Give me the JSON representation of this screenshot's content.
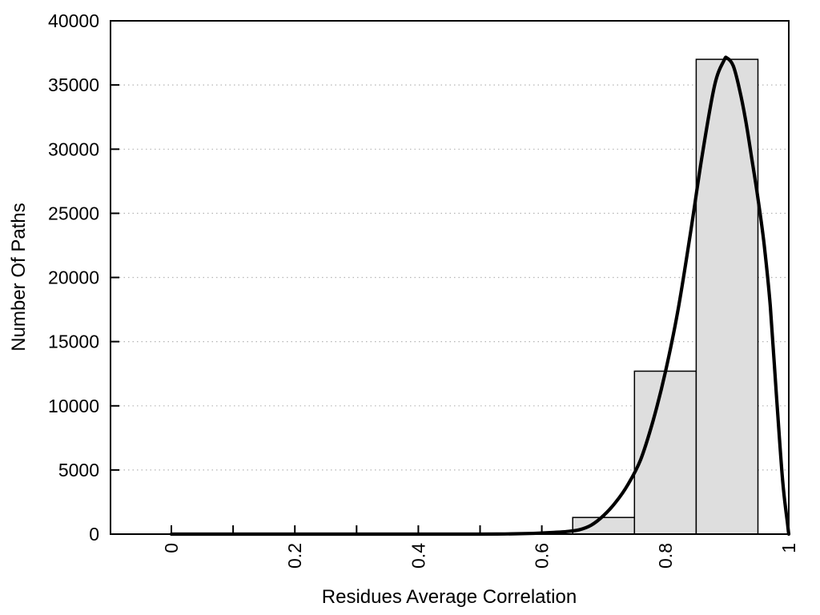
{
  "chart_data": {
    "type": "bar",
    "subtype": "histogram-with-fit-curve",
    "title": "",
    "xlabel": "Residues Average Correlation",
    "ylabel": "Number Of Paths",
    "xlim": [
      -0.097,
      1.0
    ],
    "ylim": [
      0,
      40000
    ],
    "x_major_ticks": [
      0,
      0.2,
      0.4,
      0.6,
      0.8,
      1
    ],
    "x_major_tick_labels": [
      "0",
      "0.2",
      "0.4",
      "0.6",
      "0.8",
      "1"
    ],
    "x_minor_tick_step": 0.1,
    "y_ticks": [
      0,
      5000,
      10000,
      15000,
      20000,
      25000,
      30000,
      35000,
      40000
    ],
    "y_tick_labels": [
      "0",
      "5000",
      "10000",
      "15000",
      "20000",
      "25000",
      "30000",
      "35000",
      "40000"
    ],
    "grid": "horizontal dotted lines at y ticks",
    "legend": "none",
    "x_tick_label_rotation_deg": -90,
    "bars": [
      {
        "x_from": 0.65,
        "x_to": 0.75,
        "count": 1300
      },
      {
        "x_from": 0.75,
        "x_to": 0.85,
        "count": 12700
      },
      {
        "x_from": 0.85,
        "x_to": 0.95,
        "count": 37000
      }
    ],
    "fit_curve_points": [
      [
        0.0,
        0
      ],
      [
        0.05,
        0
      ],
      [
        0.1,
        0
      ],
      [
        0.15,
        0
      ],
      [
        0.2,
        0
      ],
      [
        0.25,
        0
      ],
      [
        0.3,
        0
      ],
      [
        0.35,
        0
      ],
      [
        0.4,
        0
      ],
      [
        0.45,
        0
      ],
      [
        0.5,
        0
      ],
      [
        0.54,
        15
      ],
      [
        0.58,
        50
      ],
      [
        0.6,
        90
      ],
      [
        0.62,
        140
      ],
      [
        0.64,
        200
      ],
      [
        0.66,
        330
      ],
      [
        0.68,
        700
      ],
      [
        0.7,
        1450
      ],
      [
        0.72,
        2500
      ],
      [
        0.74,
        3900
      ],
      [
        0.76,
        5800
      ],
      [
        0.78,
        8800
      ],
      [
        0.8,
        12600
      ],
      [
        0.82,
        17300
      ],
      [
        0.84,
        23200
      ],
      [
        0.86,
        29600
      ],
      [
        0.88,
        35000
      ],
      [
        0.895,
        36900
      ],
      [
        0.9,
        37100
      ],
      [
        0.91,
        36500
      ],
      [
        0.92,
        34700
      ],
      [
        0.93,
        32300
      ],
      [
        0.94,
        29300
      ],
      [
        0.95,
        26200
      ],
      [
        0.96,
        22600
      ],
      [
        0.97,
        17800
      ],
      [
        0.98,
        10800
      ],
      [
        0.99,
        4200
      ],
      [
        0.998,
        800
      ],
      [
        1.0,
        0
      ]
    ]
  },
  "colors": {
    "bar_fill": "#dedede",
    "bar_stroke": "#000000",
    "curve": "#000000",
    "frame": "#000000",
    "grid": "#b5b5b5",
    "text": "#000000",
    "background": "#ffffff"
  }
}
